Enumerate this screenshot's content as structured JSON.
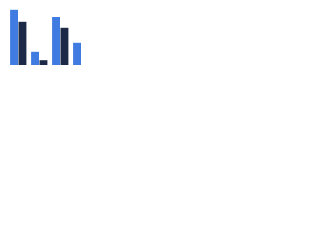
{
  "chart_data": {
    "type": "bar",
    "categories": [
      null,
      null,
      null,
      null
    ],
    "series": [
      {
        "color": "#3f7be0",
        "values": [
          92,
          22,
          80,
          37
        ]
      },
      {
        "color": "#1c2a47",
        "values": [
          72,
          8,
          62,
          null
        ]
      }
    ],
    "ylim": [
      0,
      100
    ]
  }
}
